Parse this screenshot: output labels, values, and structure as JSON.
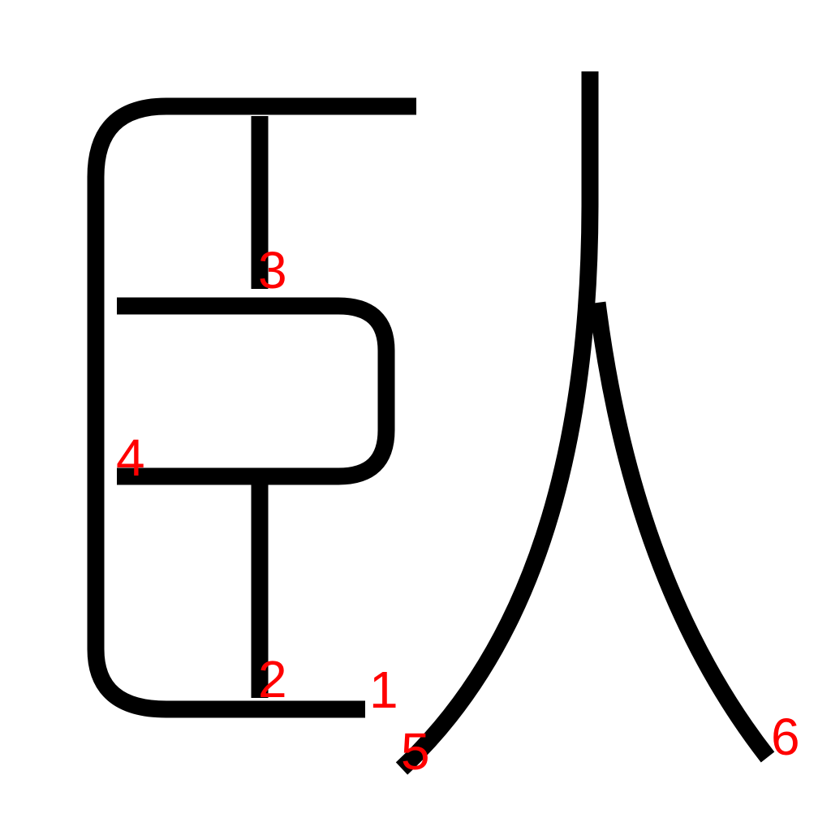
{
  "character": {
    "strokes": [
      {
        "order": 1,
        "label": "1"
      },
      {
        "order": 2,
        "label": "2"
      },
      {
        "order": 3,
        "label": "3"
      },
      {
        "order": 4,
        "label": "4"
      },
      {
        "order": 5,
        "label": "5"
      },
      {
        "order": 6,
        "label": "6"
      }
    ]
  },
  "colors": {
    "stroke": "#000000",
    "label": "#ff0000",
    "background": "#ffffff"
  }
}
